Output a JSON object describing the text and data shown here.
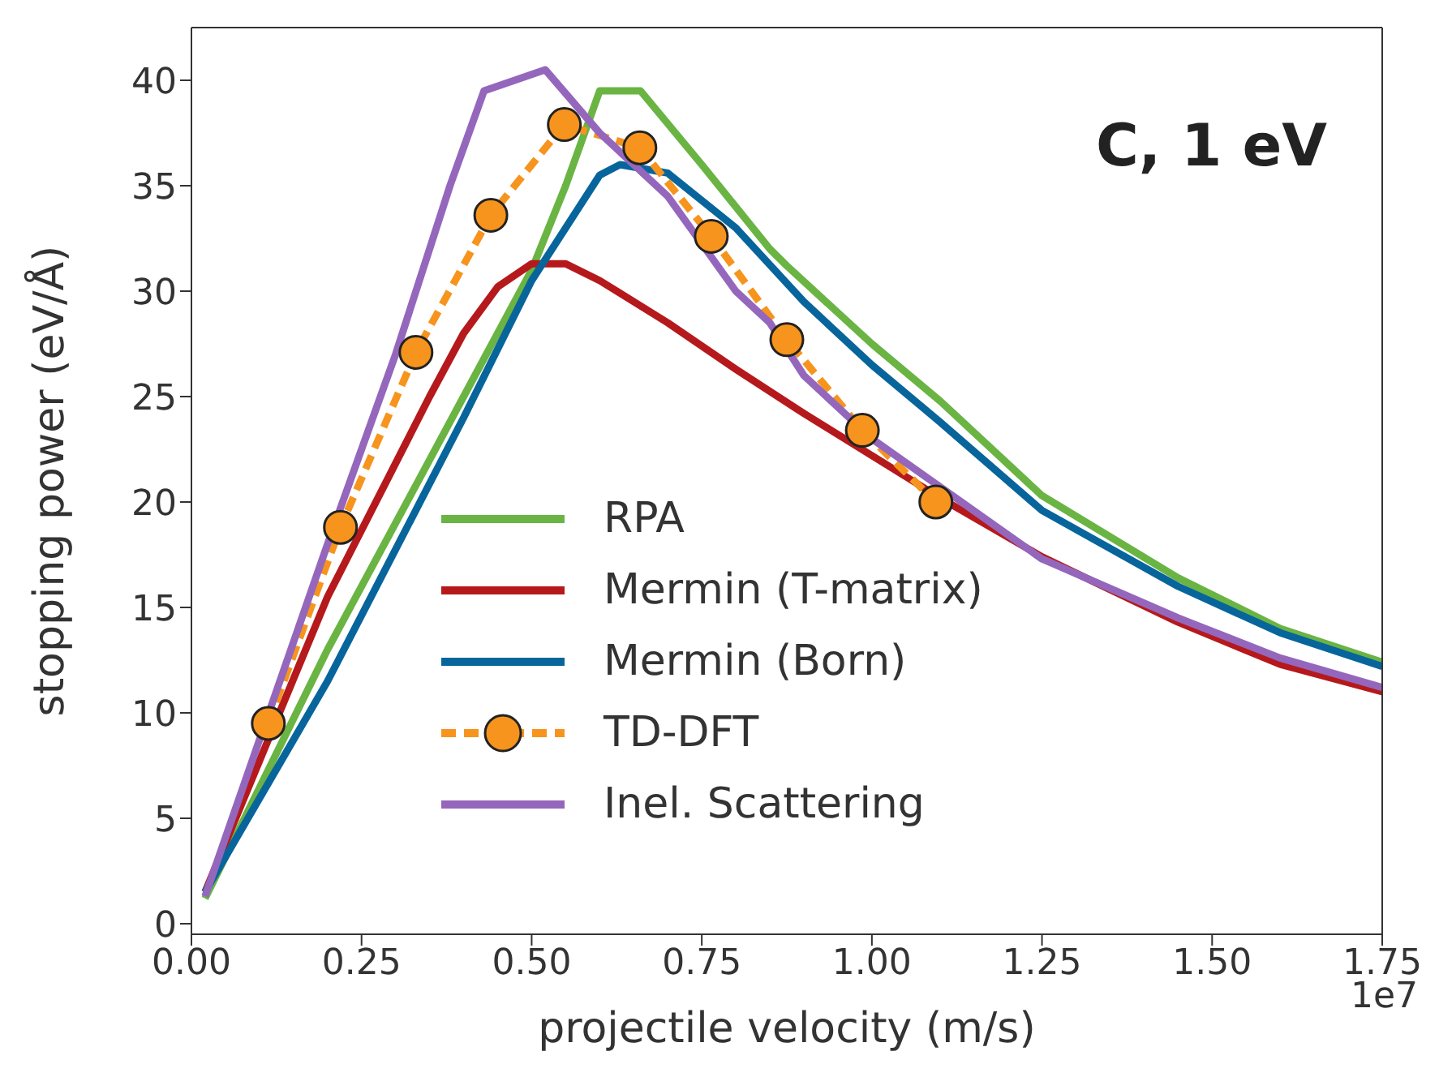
{
  "chart_data": {
    "type": "line",
    "title": "C, 1 eV",
    "xlabel": "projectile velocity (m/s)",
    "ylabel": "stopping power (eV/Å)",
    "annotations": [
      "1e7"
    ],
    "xlim": [
      0,
      1.75
    ],
    "xticks": [
      {
        "value": 0,
        "label": "0.00"
      },
      0.25,
      {
        "value": 0.5,
        "label": "0.50"
      },
      0.75,
      {
        "value": 1,
        "label": "1.00"
      },
      1.25,
      {
        "value": 1.5,
        "label": "1.50"
      },
      1.75
    ],
    "ylim": [
      -0.5,
      42.5
    ],
    "yticks": [
      0,
      5,
      10,
      15,
      20,
      25,
      30,
      35,
      40
    ],
    "legend": "bottom",
    "marker": "none",
    "line_style": "solid",
    "series": [
      {
        "name": "RPA",
        "color": "#6ab443",
        "x": [
          0.02,
          0.2,
          0.4,
          0.5,
          0.55,
          0.6,
          0.66,
          0.75,
          0.85,
          0.875,
          1.0,
          1.1,
          1.25,
          1.45,
          1.6,
          1.75
        ],
        "values": [
          1.2,
          13,
          25,
          31,
          35,
          39.5,
          39.5,
          36,
          32,
          31.2,
          27.5,
          24.8,
          20.3,
          16.4,
          14,
          12.4
        ]
      },
      {
        "name": "Mermin (T-matrix)",
        "color": "#b5191c",
        "x": [
          0.02,
          0.2,
          0.35,
          0.4,
          0.45,
          0.5,
          0.55,
          0.6,
          0.7,
          0.8,
          0.9,
          1.0,
          1.1,
          1.25,
          1.45,
          1.6,
          1.75
        ],
        "values": [
          1.5,
          15.5,
          25,
          28,
          30.2,
          31.3,
          31.3,
          30.5,
          28.5,
          26.3,
          24.2,
          22.2,
          20.2,
          17.4,
          14.3,
          12.3,
          11
        ]
      },
      {
        "name": "Mermin (Born)",
        "color": "#07659c",
        "x": [
          0.02,
          0.2,
          0.4,
          0.5,
          0.6,
          0.63,
          0.7,
          0.8,
          0.9,
          1.0,
          1.1,
          1.25,
          1.45,
          1.6,
          1.75
        ],
        "values": [
          1.5,
          11.5,
          24,
          30.5,
          35.5,
          36.0,
          35.6,
          33,
          29.5,
          26.5,
          23.8,
          19.6,
          16,
          13.8,
          12.2
        ]
      },
      {
        "name": "TD-DFT",
        "color": "#f7941d",
        "marker": "circle",
        "line_style": "dashed",
        "x": [
          0.113,
          0.219,
          0.33,
          0.44,
          0.548,
          0.659,
          0.764,
          0.875,
          0.986,
          1.094
        ],
        "values": [
          9.5,
          18.8,
          27.1,
          33.6,
          37.9,
          36.8,
          32.6,
          27.7,
          23.4,
          20.0
        ]
      },
      {
        "name": "Inel. Scattering",
        "color": "#9467bd",
        "x": [
          0.02,
          0.2,
          0.3,
          0.38,
          0.43,
          0.52,
          0.6,
          0.7,
          0.8,
          0.85,
          0.9,
          1.0,
          1.25,
          1.45,
          1.6,
          1.75
        ],
        "values": [
          1.3,
          18,
          27,
          35,
          39.5,
          40.5,
          37.5,
          34.5,
          30,
          28.5,
          26,
          23,
          17.3,
          14.5,
          12.6,
          11.2
        ]
      }
    ]
  }
}
